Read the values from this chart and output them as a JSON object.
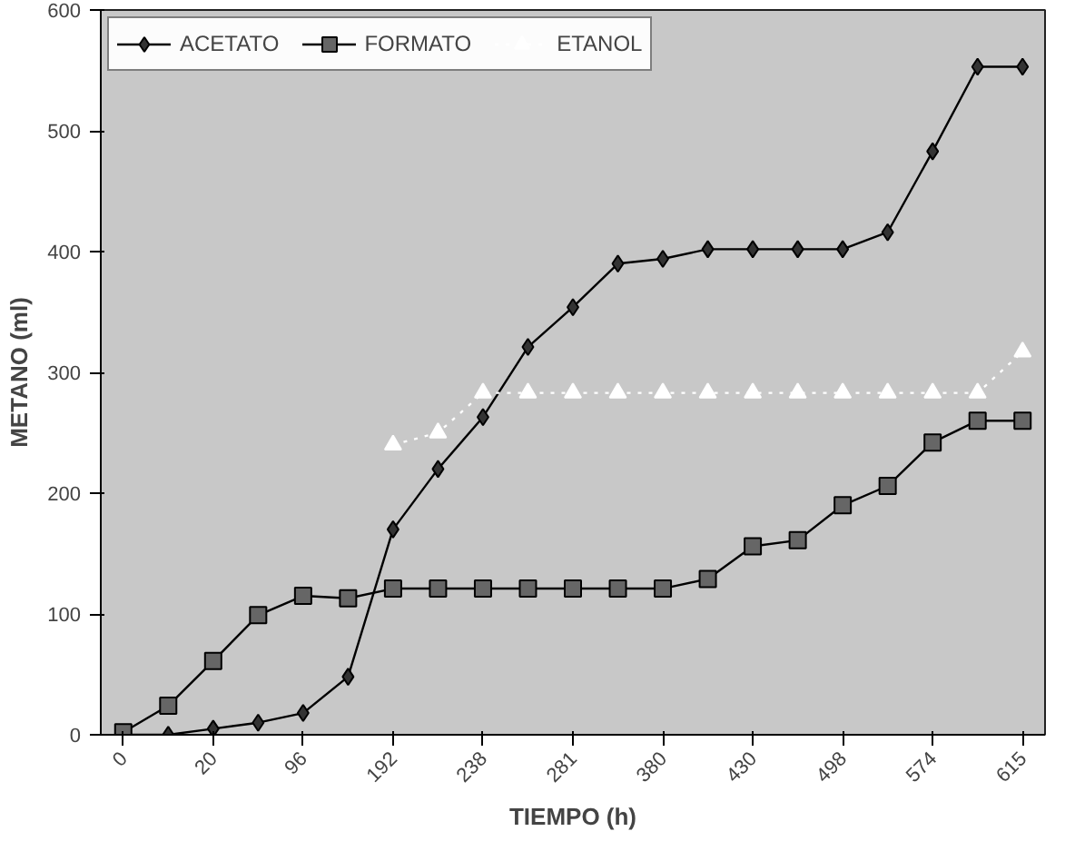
{
  "chart_data": {
    "type": "line",
    "xlabel": "TIEMPO (h)",
    "ylabel": "METANO (ml)",
    "categories": [
      "0",
      null,
      "20",
      null,
      "96",
      null,
      "192",
      null,
      "238",
      null,
      "281",
      null,
      "380",
      null,
      "430",
      null,
      "498",
      null,
      "574",
      null,
      "615"
    ],
    "series": [
      {
        "name": "ACETATO",
        "color": "#333333",
        "marker": "diamond",
        "line_style": "solid",
        "values": [
          0,
          0,
          5,
          10,
          18,
          48,
          170,
          220,
          263,
          321,
          354,
          390,
          394,
          402,
          402,
          402,
          402,
          416,
          483,
          553,
          553
        ]
      },
      {
        "name": "FORMATO",
        "color": "#666666",
        "marker": "square",
        "line_style": "solid",
        "values": [
          2,
          24,
          61,
          99,
          115,
          113,
          121,
          121,
          121,
          121,
          121,
          121,
          121,
          129,
          156,
          161,
          190,
          206,
          242,
          260,
          260
        ]
      },
      {
        "name": "ETANOL",
        "color": "#ffffff",
        "marker": "triangle",
        "line_style": "dotted",
        "values": [
          null,
          null,
          null,
          null,
          null,
          null,
          240,
          250,
          283,
          283,
          283,
          283,
          283,
          283,
          283,
          283,
          283,
          283,
          283,
          283,
          317
        ]
      }
    ],
    "ylim": [
      0,
      600
    ],
    "yticks": [
      0,
      100,
      200,
      300,
      400,
      500,
      600
    ],
    "grid": false,
    "legend": "top left"
  }
}
